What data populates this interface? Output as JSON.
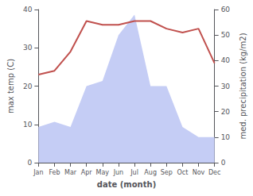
{
  "chart_data": {
    "type": "line",
    "categories": [
      "Jan",
      "Feb",
      "Mar",
      "Apr",
      "May",
      "Jun",
      "Jul",
      "Aug",
      "Sep",
      "Oct",
      "Nov",
      "Dec"
    ],
    "xlabel": "date (month)",
    "ylabel": "max temp (C)",
    "y2label": "med. precipitation (kg/m2)",
    "series": [
      {
        "type": "area",
        "color": "#c5cdf5",
        "axis": "y2",
        "values": [
          14,
          16,
          14,
          30,
          32,
          50,
          58,
          30,
          30,
          14,
          10,
          10
        ]
      },
      {
        "type": "line",
        "color": "#c0504d",
        "values": [
          23,
          24,
          29,
          37,
          36,
          36,
          37,
          37,
          35,
          34,
          35,
          26
        ]
      }
    ],
    "ylim": [
      0,
      40
    ],
    "yticks": [
      0,
      10,
      20,
      30,
      40
    ],
    "y2lim": [
      0,
      60
    ],
    "y2ticks": [
      0,
      10,
      20,
      30,
      40,
      50,
      60
    ],
    "grid": false
  }
}
